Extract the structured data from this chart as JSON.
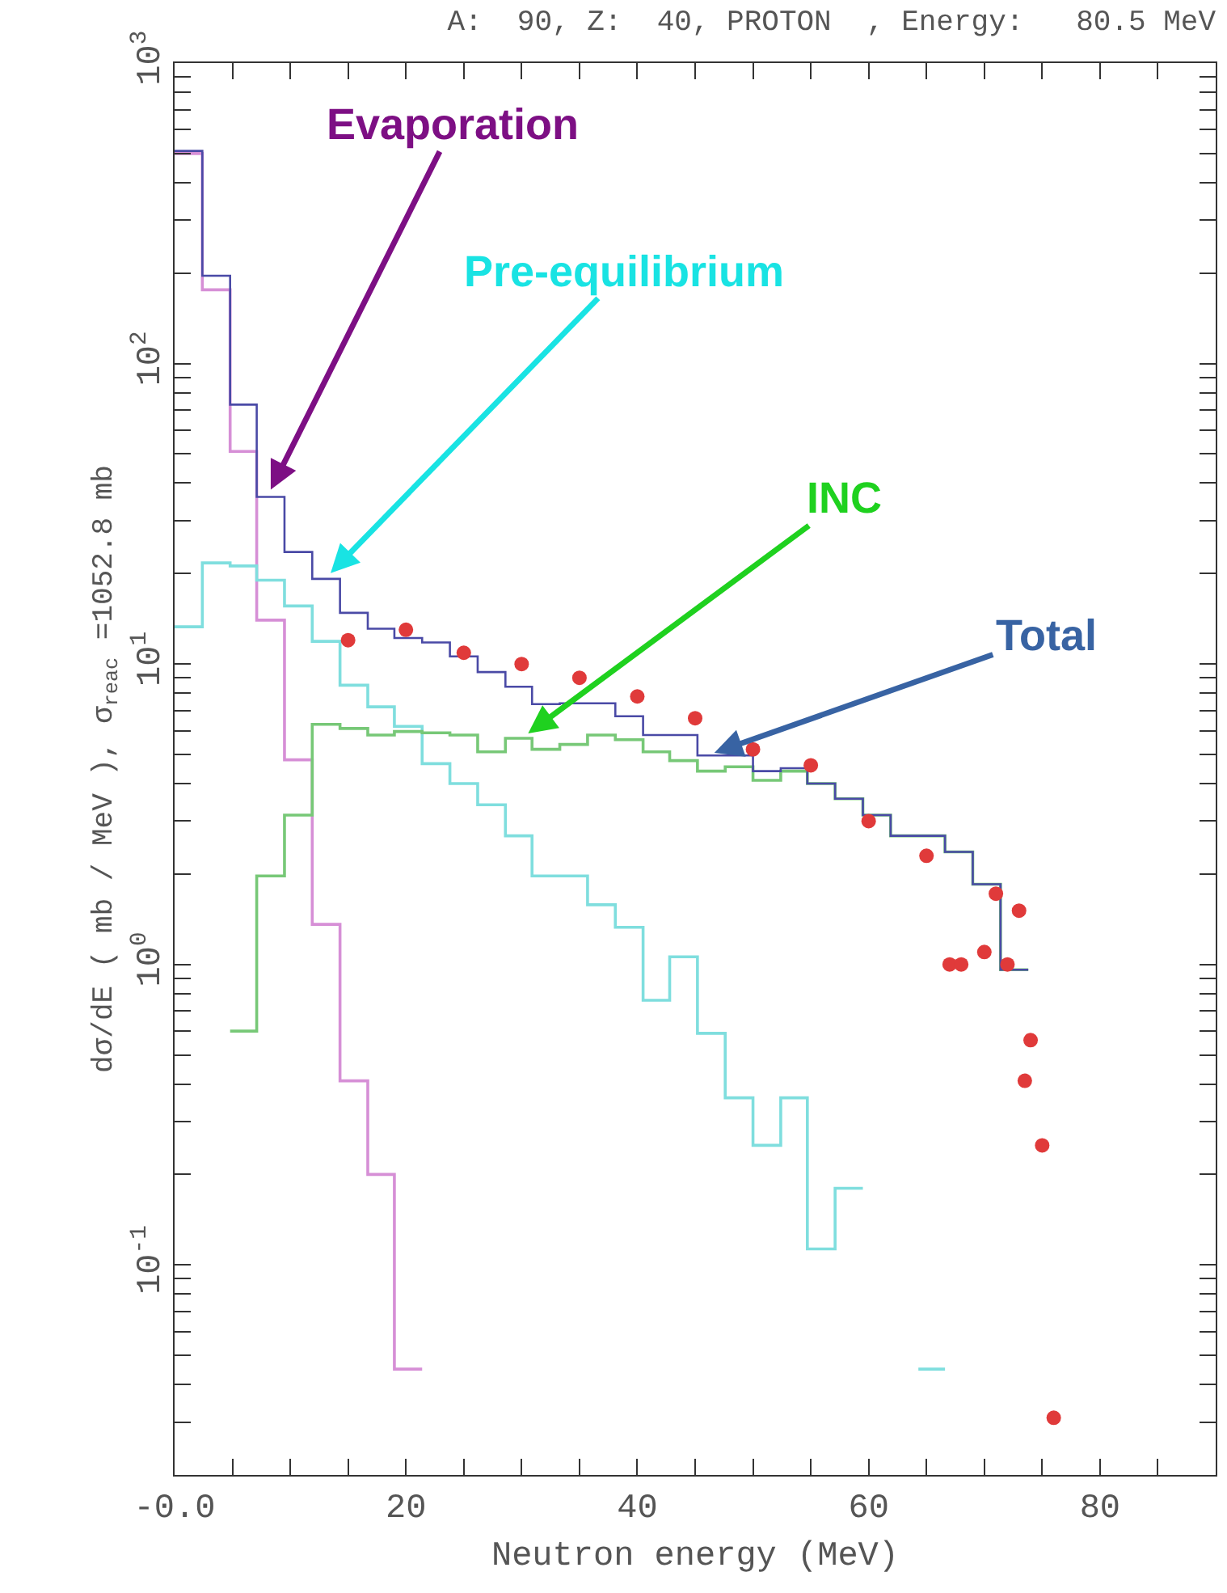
{
  "chart_data": {
    "type": "step",
    "title": "A:  90, Z:  40, PROTON  , Energy:   80.5 MeV",
    "xlabel": "Neutron energy (MeV)",
    "ylabel": "dσ/dE ( mb / MeV ), σ$_{reac}$ =1052.8 mb",
    "log": "y",
    "grid": false,
    "xlim": [
      0,
      90
    ],
    "xticks": [
      {
        "value": 0,
        "label": "-0.0"
      },
      {
        "value": 5,
        "label": null
      },
      {
        "value": 10,
        "label": null
      },
      {
        "value": 15,
        "label": null
      },
      20,
      {
        "value": 25,
        "label": null
      },
      {
        "value": 30,
        "label": null
      },
      {
        "value": 35,
        "label": null
      },
      40,
      {
        "value": 45,
        "label": null
      },
      {
        "value": 50,
        "label": null
      },
      {
        "value": 55,
        "label": null
      },
      60,
      {
        "value": 65,
        "label": null
      },
      {
        "value": 70,
        "label": null
      },
      {
        "value": 75,
        "label": null
      },
      80,
      {
        "value": 85,
        "label": null
      },
      {
        "value": 90,
        "label": null
      }
    ],
    "ylim": [
      0.02,
      1000
    ],
    "yticks": [
      {
        "value": 0.03,
        "label": null
      },
      {
        "value": 0.04,
        "label": null
      },
      {
        "value": 0.05,
        "label": null
      },
      {
        "value": 0.06,
        "label": null
      },
      {
        "value": 0.07,
        "label": null
      },
      {
        "value": 0.08,
        "label": null
      },
      {
        "value": 0.09,
        "label": null
      },
      {
        "value": 0.1,
        "label": "10$^{-1}$"
      },
      {
        "value": 0.2,
        "label": null
      },
      {
        "value": 0.3,
        "label": null
      },
      {
        "value": 0.4,
        "label": null
      },
      {
        "value": 0.5,
        "label": null
      },
      {
        "value": 0.6,
        "label": null
      },
      {
        "value": 0.7,
        "label": null
      },
      {
        "value": 0.8,
        "label": null
      },
      {
        "value": 0.9,
        "label": null
      },
      {
        "value": 1,
        "label": "10$^{0}$"
      },
      {
        "value": 2,
        "label": null
      },
      {
        "value": 3,
        "label": null
      },
      {
        "value": 4,
        "label": null
      },
      {
        "value": 5,
        "label": null
      },
      {
        "value": 6,
        "label": null
      },
      {
        "value": 7,
        "label": null
      },
      {
        "value": 8,
        "label": null
      },
      {
        "value": 9,
        "label": null
      },
      {
        "value": 10,
        "label": "10$^{1}$"
      },
      {
        "value": 20,
        "label": null
      },
      {
        "value": 30,
        "label": null
      },
      {
        "value": 40,
        "label": null
      },
      {
        "value": 50,
        "label": null
      },
      {
        "value": 60,
        "label": null
      },
      {
        "value": 70,
        "label": null
      },
      {
        "value": 80,
        "label": null
      },
      {
        "value": 90,
        "label": null
      },
      {
        "value": 100,
        "label": "10$^{2}$"
      },
      {
        "value": 200,
        "label": null
      },
      {
        "value": 300,
        "label": null
      },
      {
        "value": 400,
        "label": null
      },
      {
        "value": 500,
        "label": null
      },
      {
        "value": 600,
        "label": null
      },
      {
        "value": 700,
        "label": null
      },
      {
        "value": 800,
        "label": null
      },
      {
        "value": 900,
        "label": null
      },
      {
        "value": 1000,
        "label": "10$^{3}$"
      }
    ],
    "series": [
      {
        "color": "#d68fd6",
        "x": [
          0,
          2.4,
          4.8,
          7.1,
          9.5,
          11.9,
          14.3,
          16.7,
          19.0,
          21.4
        ],
        "values": [
          500,
          176,
          51,
          14,
          4.8,
          1.36,
          0.41,
          0.2,
          0.045,
          0.045
        ]
      },
      {
        "color": "#7fdede",
        "x": [
          0,
          2.4,
          4.8,
          7.1,
          9.5,
          11.9,
          14.3,
          16.7,
          19.0,
          21.4,
          23.8,
          26.2,
          28.6,
          30.9,
          33.3,
          35.7,
          38.1,
          40.5,
          42.8,
          45.2,
          47.6,
          50.0,
          52.4,
          54.7,
          57.1,
          59.5,
          64.3,
          66.6
        ],
        "values": [
          13.3,
          21.7,
          21.2,
          19,
          15.6,
          11.9,
          8.5,
          7.2,
          6.2,
          4.66,
          4.0,
          3.4,
          2.68,
          1.97,
          1.97,
          1.58,
          1.33,
          0.76,
          1.06,
          0.59,
          0.36,
          0.25,
          0.36,
          0.113,
          0.18,
          null,
          0.045,
          0.045
        ]
      },
      {
        "color": "#77c877",
        "x": [
          4.8,
          7.1,
          9.5,
          11.9,
          14.3,
          16.7,
          19.0,
          21.4,
          23.8,
          26.2,
          28.6,
          30.9,
          33.3,
          35.7,
          38.1,
          40.5,
          42.8,
          45.2,
          47.6,
          50.0,
          52.4,
          54.7,
          57.1,
          59.5,
          61.9,
          64.3,
          66.6,
          69.0,
          71.4,
          73.8
        ],
        "values": [
          0.6,
          1.97,
          3.14,
          6.3,
          6.1,
          5.8,
          5.96,
          5.9,
          5.8,
          5.1,
          5.66,
          5.2,
          5.4,
          5.8,
          5.6,
          5.1,
          4.77,
          4.4,
          4.55,
          4.1,
          4.4,
          4.0,
          3.56,
          3.14,
          2.68,
          2.68,
          2.37,
          1.85,
          0.96,
          0.96
        ]
      },
      {
        "color": "#4a4aa6",
        "x": [
          0,
          2.4,
          4.8,
          7.1,
          9.5,
          11.9,
          14.3,
          16.7,
          19.0,
          21.4,
          23.8,
          26.2,
          28.6,
          30.9,
          33.3,
          35.7,
          38.1,
          40.5,
          42.8,
          45.2,
          47.6,
          50.0,
          52.4,
          54.7,
          57.1,
          59.5,
          61.9,
          64.3,
          66.6,
          69.0,
          71.4,
          73.8
        ],
        "values": [
          510,
          196,
          73,
          36,
          23.6,
          19.2,
          14.8,
          13.1,
          12.2,
          11.8,
          10.6,
          9.4,
          8.4,
          7.35,
          7.4,
          7.4,
          6.7,
          5.8,
          5.8,
          4.96,
          4.96,
          4.4,
          4.5,
          4.0,
          3.56,
          3.14,
          2.68,
          2.68,
          2.37,
          1.85,
          0.96,
          0.96
        ]
      },
      {
        "type": "scatter",
        "marker": "circle",
        "color": "#e03a3a",
        "x": [
          15,
          20,
          25,
          30,
          35,
          40,
          45,
          50,
          55,
          60,
          65,
          67,
          68,
          70,
          71,
          72,
          73,
          73.5,
          74,
          75,
          76
        ],
        "values": [
          12,
          13,
          10.9,
          10,
          9,
          7.8,
          6.6,
          5.2,
          4.6,
          3.0,
          2.3,
          1.0,
          1.0,
          1.1,
          1.72,
          1.0,
          1.51,
          0.41,
          0.56,
          0.25,
          0.031
        ]
      }
    ],
    "annotations": [
      {
        "text": "Evaporation",
        "x": 8,
        "y": 36
      },
      {
        "text": "Pre-equilibrium",
        "x": 13,
        "y": 19.2
      },
      {
        "text": "INC",
        "x": 30,
        "y": 5.66
      },
      {
        "text": "Total",
        "x": 46,
        "y": 4.96
      }
    ]
  }
}
